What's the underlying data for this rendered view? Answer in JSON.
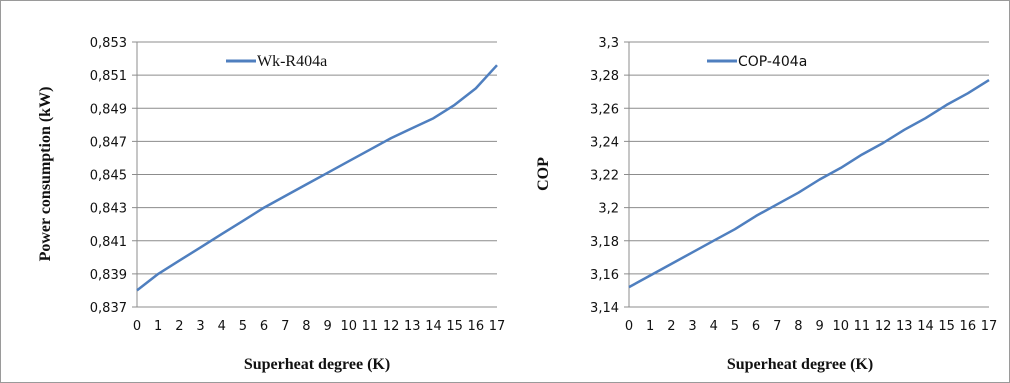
{
  "chart_data": [
    {
      "type": "line",
      "categories": [
        "0",
        "1",
        "2",
        "3",
        "4",
        "5",
        "6",
        "7",
        "8",
        "9",
        "10",
        "11",
        "12",
        "13",
        "14",
        "15",
        "16",
        "17"
      ],
      "series": [
        {
          "name": "Wk-R404a",
          "color": "#4F7FBF",
          "values": [
            0.838,
            0.839,
            0.8398,
            0.8406,
            0.8414,
            0.8422,
            0.843,
            0.8437,
            0.8444,
            0.8451,
            0.8458,
            0.8465,
            0.8472,
            0.8478,
            0.8484,
            0.8492,
            0.8502,
            0.8516
          ]
        }
      ],
      "xlabel": "Superheat degree (K)",
      "ylabel": "Power consumption (kW)",
      "yticks": [
        "0,837",
        "0,839",
        "0,841",
        "0,843",
        "0,845",
        "0,847",
        "0,849",
        "0,851",
        "0,853"
      ],
      "ylim": [
        0.837,
        0.853
      ],
      "grid": true,
      "legend_position": "top-center"
    },
    {
      "type": "line",
      "categories": [
        "0",
        "1",
        "2",
        "3",
        "4",
        "5",
        "6",
        "7",
        "8",
        "9",
        "10",
        "11",
        "12",
        "13",
        "14",
        "15",
        "16",
        "17"
      ],
      "series": [
        {
          "name": "COP-404a",
          "color": "#4F7FBF",
          "values": [
            3.152,
            3.159,
            3.166,
            3.173,
            3.18,
            3.187,
            3.195,
            3.202,
            3.209,
            3.217,
            3.224,
            3.232,
            3.239,
            3.247,
            3.254,
            3.262,
            3.269,
            3.277
          ]
        }
      ],
      "xlabel": "Superheat degree (K)",
      "ylabel": "COP",
      "yticks": [
        "3,14",
        "3,16",
        "3,18",
        "3,2",
        "3,22",
        "3,24",
        "3,26",
        "3,28",
        "3,3"
      ],
      "ylim": [
        3.14,
        3.3
      ],
      "grid": true,
      "legend_position": "top-center"
    }
  ]
}
